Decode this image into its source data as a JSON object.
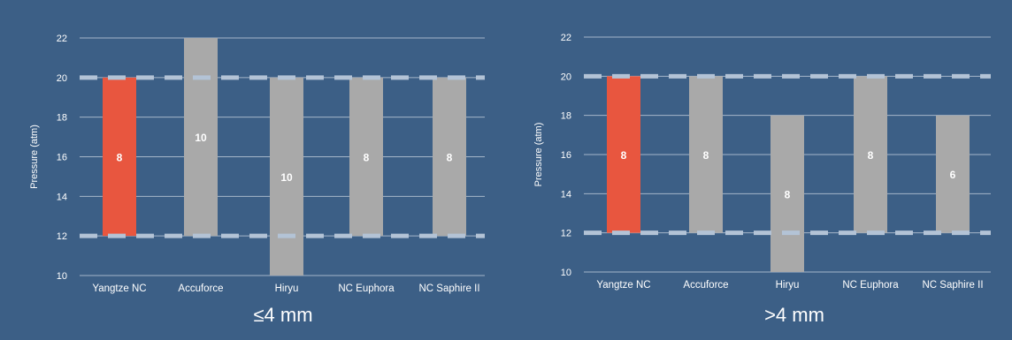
{
  "colors": {
    "background": "#3c5f86",
    "highlight": "#e8563f",
    "bar": "#a9a9a9",
    "grid": "#c8d3e0",
    "dashed_line": "#b3c3d6"
  },
  "chart_data": [
    {
      "type": "bar",
      "title": "≤4 mm",
      "ylabel": "Pressure (atm)",
      "ylim": [
        10,
        22
      ],
      "yticks": [
        10,
        12,
        14,
        16,
        18,
        20,
        22
      ],
      "categories": [
        "Yangtze NC",
        "Accuforce",
        "Hiryu",
        "NC Euphora",
        "NC Saphire II"
      ],
      "ranges": [
        [
          12,
          20
        ],
        [
          12,
          22
        ],
        [
          10,
          20
        ],
        [
          12,
          20
        ],
        [
          12,
          20
        ]
      ],
      "labels": [
        "8",
        "10",
        "10",
        "8",
        "8"
      ],
      "highlight": "Yangtze NC",
      "reference_lines": [
        12,
        20
      ]
    },
    {
      "type": "bar",
      "title": ">4 mm",
      "ylabel": "Pressure (atm)",
      "ylim": [
        10,
        22
      ],
      "yticks": [
        10,
        12,
        14,
        16,
        18,
        20,
        22
      ],
      "categories": [
        "Yangtze NC",
        "Accuforce",
        "Hiryu",
        "NC Euphora",
        "NC Saphire II"
      ],
      "ranges": [
        [
          12,
          20
        ],
        [
          12,
          20
        ],
        [
          10,
          18
        ],
        [
          12,
          20
        ],
        [
          12,
          18
        ]
      ],
      "labels": [
        "8",
        "8",
        "8",
        "8",
        "6"
      ],
      "highlight": "Yangtze NC",
      "reference_lines": [
        12,
        20
      ]
    }
  ]
}
